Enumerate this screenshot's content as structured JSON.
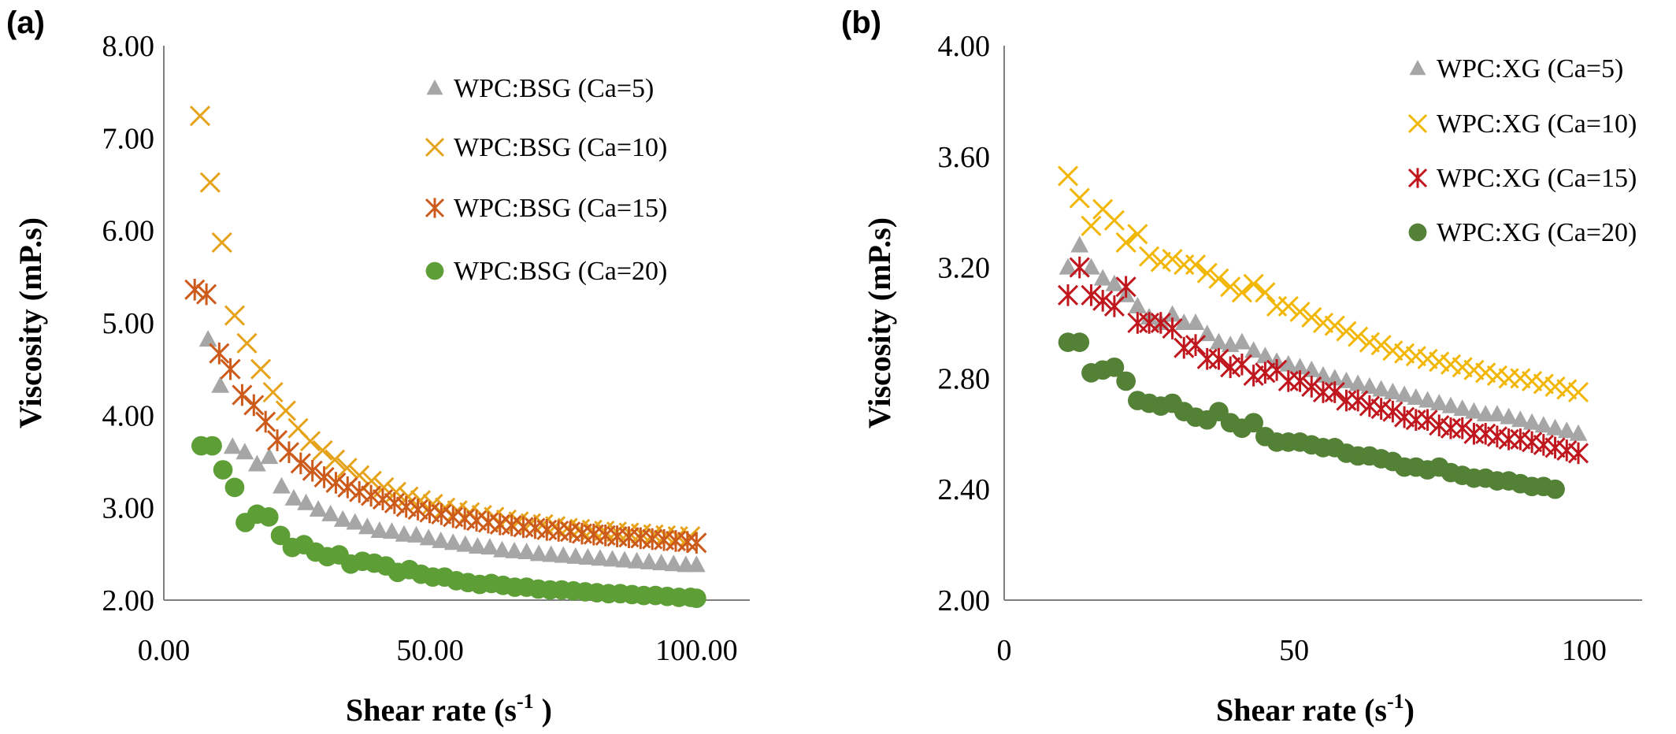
{
  "chart_data": [
    {
      "panel": "(a)",
      "type": "scatter",
      "xlabel": "Shear rate (s",
      "xlabel_sup": "-1",
      "xlabel_end": " )",
      "ylabel": "Viscosity (mP.s)",
      "xlim": [
        0,
        110
      ],
      "ylim": [
        2,
        8
      ],
      "xticks": [
        "0.00",
        "50.00",
        "100.00"
      ],
      "xtick_values": [
        0,
        50,
        100
      ],
      "yticks": [
        "2.00",
        "3.00",
        "4.00",
        "5.00",
        "6.00",
        "7.00",
        "8.00"
      ],
      "ytick_values": [
        2,
        3,
        4,
        5,
        6,
        7,
        8
      ],
      "legend_position": "top-right",
      "series": [
        {
          "name": "WPC:BSG (Ca=5)",
          "marker": "triangle",
          "color": "#a6a6a6",
          "x": [
            8.3,
            10.6,
            12.9,
            15.2,
            17.5,
            19.8,
            22.1,
            24.4,
            26.7,
            29,
            31.3,
            33.6,
            35.9,
            38.2,
            40.5,
            42.8,
            45.1,
            47.4,
            49.7,
            52,
            54.3,
            56.6,
            58.9,
            61.2,
            63.5,
            65.8,
            68.1,
            70.4,
            72.7,
            75,
            77.3,
            79.6,
            81.9,
            84.2,
            86.5,
            88.8,
            91.1,
            93.4,
            95.7,
            98,
            100
          ],
          "y": [
            4.82,
            4.32,
            3.66,
            3.6,
            3.47,
            3.55,
            3.23,
            3.1,
            3.05,
            2.98,
            2.93,
            2.87,
            2.84,
            2.79,
            2.75,
            2.74,
            2.71,
            2.7,
            2.67,
            2.64,
            2.62,
            2.6,
            2.58,
            2.57,
            2.54,
            2.53,
            2.52,
            2.5,
            2.49,
            2.48,
            2.47,
            2.46,
            2.45,
            2.44,
            2.43,
            2.42,
            2.41,
            2.4,
            2.39,
            2.38,
            2.38
          ]
        },
        {
          "name": "WPC:BSG (Ca=10)",
          "marker": "x",
          "color": "#e6a31a",
          "x": [
            6.8,
            8.7,
            10.9,
            13.3,
            15.6,
            18.2,
            20.5,
            22.9,
            25.2,
            27.5,
            29.8,
            32.1,
            34.4,
            36.7,
            39,
            41.3,
            43.6,
            45.9,
            48.2,
            50.5,
            52.8,
            55.1,
            57.4,
            59.7,
            62,
            64.3,
            66.6,
            68.9,
            71.2,
            73.5,
            75.8,
            78.1,
            80.4,
            82.7,
            85,
            87.3,
            89.6,
            91.9,
            94.2,
            96.5,
            98.8
          ],
          "y": [
            7.24,
            6.52,
            5.87,
            5.08,
            4.78,
            4.5,
            4.25,
            4.05,
            3.86,
            3.72,
            3.62,
            3.52,
            3.43,
            3.35,
            3.29,
            3.22,
            3.17,
            3.12,
            3.08,
            3.04,
            3.0,
            2.97,
            2.95,
            2.92,
            2.9,
            2.87,
            2.85,
            2.83,
            2.82,
            2.8,
            2.78,
            2.77,
            2.76,
            2.75,
            2.74,
            2.73,
            2.72,
            2.71,
            2.7,
            2.69,
            2.69
          ]
        },
        {
          "name": "WPC:BSG (Ca=15)",
          "marker": "asterisk",
          "color": "#cc5a1a",
          "x": [
            5.8,
            8,
            10.4,
            12.5,
            14.7,
            16.9,
            19.1,
            21.3,
            23.5,
            25.7,
            27.9,
            30.1,
            32.3,
            34.5,
            36.7,
            38.9,
            41.1,
            43.3,
            45.5,
            47.7,
            49.9,
            52.1,
            54.3,
            56.5,
            58.7,
            60.9,
            63.1,
            65.3,
            67.5,
            69.7,
            71.9,
            74.1,
            76.3,
            78.5,
            80.7,
            82.9,
            85.1,
            87.3,
            89.5,
            91.7,
            93.9,
            96.1,
            98.3,
            100
          ],
          "y": [
            5.36,
            5.31,
            4.67,
            4.5,
            4.22,
            4.11,
            3.93,
            3.73,
            3.6,
            3.48,
            3.4,
            3.33,
            3.27,
            3.22,
            3.17,
            3.13,
            3.09,
            3.05,
            3.01,
            2.98,
            2.95,
            2.93,
            2.9,
            2.88,
            2.86,
            2.84,
            2.82,
            2.81,
            2.79,
            2.78,
            2.76,
            2.75,
            2.74,
            2.72,
            2.71,
            2.7,
            2.69,
            2.68,
            2.67,
            2.66,
            2.65,
            2.64,
            2.63,
            2.62
          ]
        },
        {
          "name": "WPC:BSG (Ca=20)",
          "marker": "circle",
          "color": "#5e9e37",
          "x": [
            7,
            9.1,
            11.1,
            13.3,
            15.3,
            17.5,
            19.7,
            21.9,
            24.1,
            26.3,
            28.5,
            30.7,
            32.9,
            35.1,
            37.3,
            39.5,
            41.7,
            43.9,
            46.1,
            48.3,
            50.5,
            52.7,
            54.9,
            57.1,
            59.3,
            61.5,
            63.7,
            65.9,
            68.1,
            70.3,
            72.5,
            74.7,
            76.9,
            79.1,
            81.3,
            83.5,
            85.7,
            87.9,
            90.1,
            92.3,
            94.5,
            96.7,
            98.9,
            100
          ],
          "y": [
            3.67,
            3.67,
            3.41,
            3.22,
            2.84,
            2.93,
            2.9,
            2.7,
            2.57,
            2.6,
            2.52,
            2.47,
            2.49,
            2.39,
            2.42,
            2.4,
            2.37,
            2.3,
            2.33,
            2.28,
            2.25,
            2.25,
            2.21,
            2.19,
            2.17,
            2.18,
            2.16,
            2.14,
            2.14,
            2.12,
            2.11,
            2.11,
            2.1,
            2.09,
            2.08,
            2.07,
            2.07,
            2.06,
            2.05,
            2.05,
            2.04,
            2.03,
            2.03,
            2.02
          ]
        }
      ]
    },
    {
      "panel": "(b)",
      "type": "scatter",
      "xlabel": "Shear rate (s",
      "xlabel_sup": "-1",
      "xlabel_end": ")",
      "ylabel": "Viscosity (mP.s)",
      "xlim": [
        0,
        110
      ],
      "ylim": [
        2,
        4
      ],
      "xticks": [
        "0",
        "50",
        "100"
      ],
      "xtick_values": [
        0,
        50,
        100
      ],
      "yticks": [
        "2.00",
        "2.40",
        "2.80",
        "3.20",
        "3.60",
        "4.00"
      ],
      "ytick_values": [
        2,
        2.4,
        2.8,
        3.2,
        3.6,
        4
      ],
      "legend_position": "top-right",
      "series": [
        {
          "name": "WPC:XG (Ca=5)",
          "marker": "triangle",
          "color": "#a6a6a6",
          "x": [
            11,
            13,
            15,
            17,
            19,
            21,
            23,
            25,
            27,
            29,
            31,
            33,
            35,
            37,
            39,
            41,
            43,
            45,
            47,
            49,
            51,
            53,
            55,
            57,
            59,
            61,
            63,
            65,
            67,
            69,
            71,
            73,
            75,
            77,
            79,
            81,
            83,
            85,
            87,
            89,
            91,
            93,
            95,
            97,
            99
          ],
          "y": [
            3.2,
            3.28,
            3.2,
            3.16,
            3.14,
            3.1,
            3.06,
            3.02,
            3.0,
            3.03,
            3.0,
            3.0,
            2.96,
            2.93,
            2.92,
            2.93,
            2.9,
            2.88,
            2.86,
            2.85,
            2.84,
            2.83,
            2.81,
            2.8,
            2.79,
            2.78,
            2.77,
            2.76,
            2.75,
            2.74,
            2.73,
            2.72,
            2.71,
            2.7,
            2.69,
            2.68,
            2.67,
            2.67,
            2.66,
            2.65,
            2.64,
            2.63,
            2.62,
            2.61,
            2.6
          ]
        },
        {
          "name": "WPC:XG (Ca=10)",
          "marker": "x",
          "color": "#f2b705",
          "x": [
            11,
            13,
            15,
            17,
            19,
            21,
            23,
            25,
            27,
            29,
            31,
            33,
            35,
            37,
            39,
            41,
            43,
            45,
            47,
            49,
            51,
            53,
            55,
            57,
            59,
            61,
            63,
            65,
            67,
            69,
            71,
            73,
            75,
            77,
            79,
            81,
            83,
            85,
            87,
            89,
            91,
            93,
            95,
            97,
            99
          ],
          "y": [
            3.53,
            3.45,
            3.35,
            3.41,
            3.37,
            3.29,
            3.32,
            3.24,
            3.22,
            3.23,
            3.21,
            3.21,
            3.18,
            3.16,
            3.13,
            3.11,
            3.14,
            3.11,
            3.06,
            3.06,
            3.04,
            3.02,
            3.0,
            2.99,
            2.97,
            2.95,
            2.93,
            2.92,
            2.9,
            2.89,
            2.88,
            2.87,
            2.86,
            2.85,
            2.84,
            2.83,
            2.82,
            2.81,
            2.8,
            2.8,
            2.79,
            2.78,
            2.77,
            2.76,
            2.75
          ]
        },
        {
          "name": "WPC:XG (Ca=15)",
          "marker": "asterisk",
          "color": "#c0161d",
          "x": [
            11,
            13,
            15,
            17,
            19,
            21,
            23,
            25,
            27,
            29,
            31,
            33,
            35,
            37,
            39,
            41,
            43,
            45,
            47,
            49,
            51,
            53,
            55,
            57,
            59,
            61,
            63,
            65,
            67,
            69,
            71,
            73,
            75,
            77,
            79,
            81,
            83,
            85,
            87,
            89,
            91,
            93,
            95,
            97,
            99
          ],
          "y": [
            3.1,
            3.2,
            3.1,
            3.08,
            3.06,
            3.13,
            3.0,
            3.0,
            3.0,
            2.98,
            2.91,
            2.92,
            2.87,
            2.87,
            2.84,
            2.85,
            2.81,
            2.82,
            2.83,
            2.79,
            2.79,
            2.77,
            2.75,
            2.75,
            2.72,
            2.72,
            2.7,
            2.69,
            2.68,
            2.66,
            2.65,
            2.65,
            2.63,
            2.62,
            2.62,
            2.6,
            2.6,
            2.59,
            2.58,
            2.58,
            2.57,
            2.56,
            2.55,
            2.54,
            2.53
          ]
        },
        {
          "name": "WPC:XG (Ca=20)",
          "marker": "circle",
          "color": "#538135",
          "x": [
            11,
            13,
            15,
            17,
            19,
            21,
            23,
            25,
            27,
            29,
            31,
            33,
            35,
            37,
            39,
            41,
            43,
            45,
            47,
            49,
            51,
            53,
            55,
            57,
            59,
            61,
            63,
            65,
            67,
            69,
            71,
            73,
            75,
            77,
            79,
            81,
            83,
            85,
            87,
            89,
            91,
            93,
            95
          ],
          "y": [
            2.93,
            2.93,
            2.82,
            2.83,
            2.84,
            2.79,
            2.72,
            2.71,
            2.7,
            2.71,
            2.68,
            2.66,
            2.65,
            2.68,
            2.64,
            2.62,
            2.64,
            2.59,
            2.57,
            2.57,
            2.57,
            2.56,
            2.55,
            2.55,
            2.53,
            2.52,
            2.52,
            2.51,
            2.5,
            2.48,
            2.48,
            2.47,
            2.48,
            2.46,
            2.45,
            2.44,
            2.44,
            2.43,
            2.43,
            2.42,
            2.41,
            2.41,
            2.4
          ]
        }
      ]
    }
  ]
}
